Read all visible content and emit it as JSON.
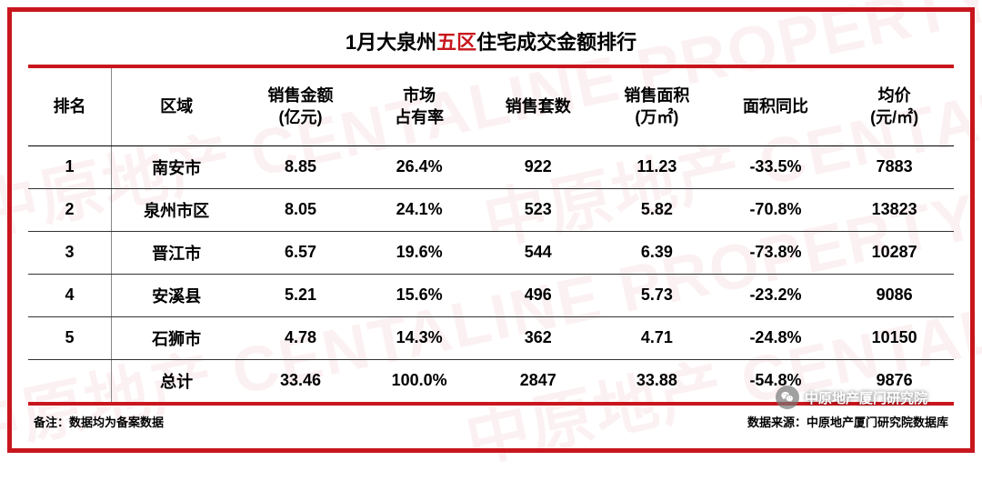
{
  "title": {
    "prefix": "1月大泉州",
    "highlight": "五区",
    "suffix": "住宅成交金额排行"
  },
  "colors": {
    "accent": "#c8161d",
    "border_outer": "#c8161d",
    "text": "#000000",
    "watermark": "rgba(200,22,29,0.06)"
  },
  "table": {
    "columns": [
      "排名",
      "区域",
      "销售金额\n(亿元)",
      "市场\n占有率",
      "销售套数",
      "销售面积\n(万㎡)",
      "面积同比",
      "均价\n(元/㎡)"
    ],
    "rows": [
      [
        "1",
        "南安市",
        "8.85",
        "26.4%",
        "922",
        "11.23",
        "-33.5%",
        "7883"
      ],
      [
        "2",
        "泉州市区",
        "8.05",
        "24.1%",
        "523",
        "5.82",
        "-70.8%",
        "13823"
      ],
      [
        "3",
        "晋江市",
        "6.57",
        "19.6%",
        "544",
        "6.39",
        "-73.8%",
        "10287"
      ],
      [
        "4",
        "安溪县",
        "5.21",
        "15.6%",
        "496",
        "5.73",
        "-23.2%",
        "9086"
      ],
      [
        "5",
        "石狮市",
        "4.78",
        "14.3%",
        "362",
        "4.71",
        "-24.8%",
        "10150"
      ],
      [
        "",
        "总计",
        "33.46",
        "100.0%",
        "2847",
        "33.88",
        "-54.8%",
        "9876"
      ]
    ]
  },
  "footer": {
    "note": "备注：数据均为备案数据",
    "source": "数据来源：中原地产厦门研究院数据库"
  },
  "badge": {
    "label": "中原地产厦门研究院"
  },
  "watermark_text": "中原地产 CENTALINE PROPERTY"
}
